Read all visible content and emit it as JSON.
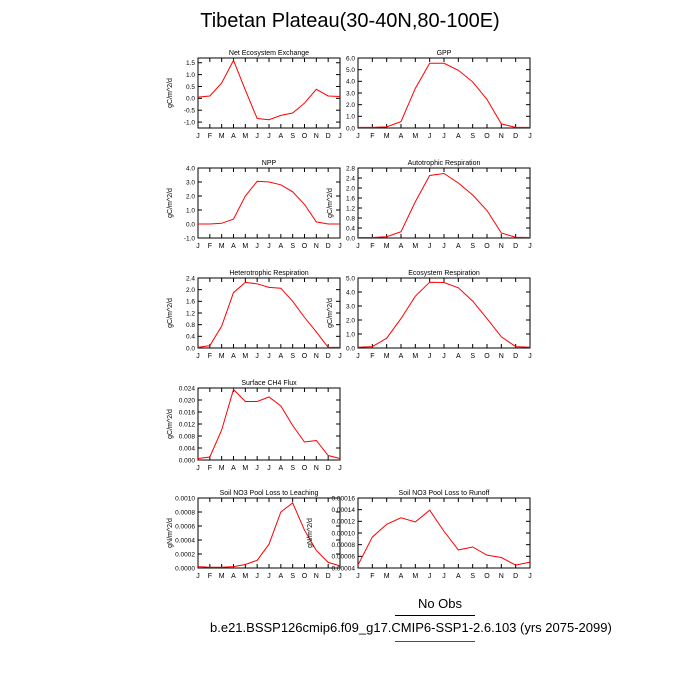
{
  "title": "Tibetan Plateau(30-40N,80-100E)",
  "legend": {
    "obs_label": "No Obs",
    "case_label": "b.e21.BSSP126cmip6.f09_g17.CMIP6-SSP1-2.6.103 (yrs 2075-2099)",
    "case_color": "#ff0000"
  },
  "colors": {
    "series": "#ff0000",
    "axis": "#000000"
  },
  "chart_data": [
    {
      "type": "line",
      "title": "Net Ecosystem Exchange",
      "ylabel": "gC/m^2/d",
      "x": [
        "J",
        "F",
        "M",
        "A",
        "M",
        "J",
        "J",
        "A",
        "S",
        "O",
        "N",
        "D",
        "J"
      ],
      "ylim": [
        -1.25,
        1.7
      ],
      "yticks": [
        -1.0,
        -0.5,
        0.0,
        0.5,
        1.0,
        1.5
      ],
      "ytick_labels": [
        "-1.0",
        "-0.5",
        "0.0",
        "0.5",
        "1.0",
        "1.5"
      ],
      "series": [
        {
          "values": [
            0.05,
            0.1,
            0.65,
            1.6,
            0.35,
            -0.85,
            -0.9,
            -0.72,
            -0.62,
            -0.2,
            0.38,
            0.1,
            0.08
          ]
        }
      ]
    },
    {
      "type": "line",
      "title": "GPP",
      "ylabel": "",
      "x": [
        "J",
        "F",
        "M",
        "A",
        "M",
        "J",
        "J",
        "A",
        "S",
        "O",
        "N",
        "D",
        "J"
      ],
      "ylim": [
        0,
        6.0
      ],
      "yticks": [
        0,
        1,
        2,
        3,
        4,
        5,
        6
      ],
      "ytick_labels": [
        "0.0",
        "1.0",
        "2.0",
        "3.0",
        "4.0",
        "5.0",
        "6.0"
      ],
      "series": [
        {
          "values": [
            0.05,
            0.05,
            0.1,
            0.55,
            3.4,
            5.55,
            5.55,
            4.95,
            3.95,
            2.45,
            0.35,
            0.05,
            0.05
          ]
        }
      ]
    },
    {
      "type": "line",
      "title": "NPP",
      "ylabel": "gC/m^2/d",
      "x": [
        "J",
        "F",
        "M",
        "A",
        "M",
        "J",
        "J",
        "A",
        "S",
        "O",
        "N",
        "D",
        "J"
      ],
      "ylim": [
        -1.0,
        4.0
      ],
      "yticks": [
        -1,
        0,
        1,
        2,
        3,
        4
      ],
      "ytick_labels": [
        "-1.0",
        "0.0",
        "1.0",
        "2.0",
        "3.0",
        "4.0"
      ],
      "series": [
        {
          "values": [
            0.0,
            0.0,
            0.05,
            0.35,
            2.0,
            3.05,
            3.0,
            2.8,
            2.3,
            1.4,
            0.15,
            0.0,
            0.0
          ]
        }
      ]
    },
    {
      "type": "line",
      "title": "Autotrophic Respiration",
      "ylabel": "gC/m^2/d",
      "x": [
        "J",
        "F",
        "M",
        "A",
        "M",
        "J",
        "J",
        "A",
        "S",
        "O",
        "N",
        "D",
        "J"
      ],
      "ylim": [
        0,
        2.8
      ],
      "yticks": [
        0,
        0.4,
        0.8,
        1.2,
        1.6,
        2.0,
        2.4,
        2.8
      ],
      "ytick_labels": [
        "0.0",
        "0.4",
        "0.8",
        "1.2",
        "1.6",
        "2.0",
        "2.4",
        "2.8"
      ],
      "series": [
        {
          "values": [
            0.02,
            0.02,
            0.05,
            0.25,
            1.45,
            2.5,
            2.58,
            2.2,
            1.72,
            1.1,
            0.2,
            0.03,
            0.02
          ]
        }
      ]
    },
    {
      "type": "line",
      "title": "Heterotrophic Respiration",
      "ylabel": "gC/m^2/d",
      "x": [
        "J",
        "F",
        "M",
        "A",
        "M",
        "J",
        "J",
        "A",
        "S",
        "O",
        "N",
        "D",
        "J"
      ],
      "ylim": [
        0,
        2.4
      ],
      "yticks": [
        0,
        0.4,
        0.8,
        1.2,
        1.6,
        2.0,
        2.4
      ],
      "ytick_labels": [
        "0.0",
        "0.4",
        "0.8",
        "1.2",
        "1.6",
        "2.0",
        "2.4"
      ],
      "series": [
        {
          "values": [
            0.02,
            0.08,
            0.75,
            1.9,
            2.25,
            2.2,
            2.08,
            2.05,
            1.6,
            1.05,
            0.55,
            0.02,
            0.02
          ]
        }
      ]
    },
    {
      "type": "line",
      "title": "Ecosystem Respiration",
      "ylabel": "gC/m^2/d",
      "x": [
        "J",
        "F",
        "M",
        "A",
        "M",
        "J",
        "J",
        "A",
        "S",
        "O",
        "N",
        "D",
        "J"
      ],
      "ylim": [
        0,
        5.0
      ],
      "yticks": [
        0,
        1,
        2,
        3,
        4,
        5
      ],
      "ytick_labels": [
        "0.0",
        "1.0",
        "2.0",
        "3.0",
        "4.0",
        "5.0"
      ],
      "series": [
        {
          "values": [
            0.05,
            0.1,
            0.7,
            2.1,
            3.7,
            4.7,
            4.68,
            4.3,
            3.35,
            2.1,
            0.8,
            0.1,
            0.05
          ]
        }
      ]
    },
    {
      "type": "line",
      "title": "Surface CH4 Flux",
      "ylabel": "gC/m^2/d",
      "x": [
        "J",
        "F",
        "M",
        "A",
        "M",
        "J",
        "J",
        "A",
        "S",
        "O",
        "N",
        "D",
        "J"
      ],
      "ylim": [
        0,
        0.024
      ],
      "yticks": [
        0,
        0.004,
        0.008,
        0.012,
        0.016,
        0.02,
        0.024
      ],
      "ytick_labels": [
        "0.000",
        "0.004",
        "0.008",
        "0.012",
        "0.016",
        "0.020",
        "0.024"
      ],
      "series": [
        {
          "values": [
            0.0005,
            0.001,
            0.01,
            0.0235,
            0.0195,
            0.0195,
            0.021,
            0.018,
            0.0115,
            0.006,
            0.0065,
            0.0015,
            0.0005
          ]
        }
      ]
    },
    {
      "type": "line",
      "title": "Soil NO3 Pool Loss to Leaching",
      "ylabel": "gN/m^2/d",
      "x": [
        "J",
        "F",
        "M",
        "A",
        "M",
        "J",
        "J",
        "A",
        "S",
        "O",
        "N",
        "D",
        "J"
      ],
      "ylim": [
        0,
        0.001
      ],
      "yticks": [
        0,
        0.0002,
        0.0004,
        0.0006,
        0.0008,
        0.001
      ],
      "ytick_labels": [
        "0.0000",
        "0.0002",
        "0.0004",
        "0.0006",
        "0.0008",
        "0.0010"
      ],
      "series": [
        {
          "values": [
            2e-05,
            1e-05,
            1e-05,
            2e-05,
            5e-05,
            0.00011,
            0.00034,
            0.0008,
            0.00093,
            0.00054,
            0.00025,
            8e-05,
            3e-05
          ]
        }
      ]
    },
    {
      "type": "line",
      "title": "Soil NO3 Pool Loss to Runoff",
      "ylabel": "gN/m^2/d",
      "x": [
        "J",
        "F",
        "M",
        "A",
        "M",
        "J",
        "J",
        "A",
        "S",
        "O",
        "N",
        "D",
        "J"
      ],
      "ylim": [
        4e-05,
        0.00016
      ],
      "yticks": [
        4e-05,
        6e-05,
        8e-05,
        0.0001,
        0.00012,
        0.00014,
        0.00016
      ],
      "ytick_labels": [
        "0.00004",
        "0.00006",
        "0.00008",
        "0.00010",
        "0.00012",
        "0.00014",
        "0.00016"
      ],
      "series": [
        {
          "values": [
            4.5e-05,
            9.3e-05,
            0.000115,
            0.000126,
            0.000119,
            0.000139,
            0.000103,
            7.1e-05,
            7.6e-05,
            6.2e-05,
            5.8e-05,
            4.5e-05,
            5e-05
          ]
        }
      ]
    }
  ]
}
